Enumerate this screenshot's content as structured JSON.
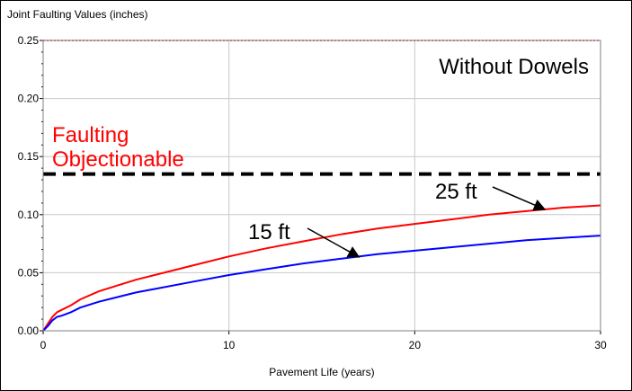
{
  "chart_data": {
    "type": "line",
    "title": "Joint Faulting Values (inches)",
    "xlabel": "Pavement Life (years)",
    "ylabel": "",
    "xlim": [
      0,
      30
    ],
    "ylim": [
      0,
      0.25
    ],
    "xticks": [
      "0",
      "10",
      "20",
      "30"
    ],
    "yticks": [
      "0.00",
      "0.05",
      "0.10",
      "0.15",
      "0.20",
      "0.25"
    ],
    "grid": true,
    "series": [
      {
        "name": "25 ft",
        "color": "#ff0000",
        "x": [
          0,
          0.25,
          0.5,
          0.75,
          1,
          1.5,
          2,
          3,
          4,
          5,
          6,
          8,
          10,
          12,
          14,
          16,
          18,
          20,
          22,
          24,
          26,
          28,
          30
        ],
        "y": [
          0,
          0.006,
          0.012,
          0.016,
          0.018,
          0.022,
          0.027,
          0.034,
          0.039,
          0.044,
          0.048,
          0.056,
          0.064,
          0.071,
          0.077,
          0.083,
          0.088,
          0.092,
          0.096,
          0.1,
          0.103,
          0.106,
          0.108
        ]
      },
      {
        "name": "15 ft",
        "color": "#0000ff",
        "x": [
          0,
          0.25,
          0.5,
          0.75,
          1,
          1.5,
          2,
          3,
          4,
          5,
          6,
          8,
          10,
          12,
          14,
          16,
          18,
          20,
          22,
          24,
          26,
          28,
          30
        ],
        "y": [
          0,
          0.004,
          0.009,
          0.012,
          0.013,
          0.016,
          0.02,
          0.025,
          0.029,
          0.033,
          0.036,
          0.042,
          0.048,
          0.053,
          0.058,
          0.062,
          0.066,
          0.069,
          0.072,
          0.075,
          0.078,
          0.08,
          0.082
        ]
      }
    ],
    "reference_lines": [
      {
        "label": "Faulting Objectionable",
        "y": 0.135,
        "color": "#000000",
        "style": "dashed",
        "label_color": "#ff0000"
      },
      {
        "label": "",
        "y": 0.25,
        "color": "#ff0000",
        "style": "dotted"
      }
    ],
    "annotations": [
      {
        "text": "Without Dowels"
      },
      {
        "text": "25 ft",
        "arrow_to": [
          27,
          0.1045
        ]
      },
      {
        "text": "15 ft",
        "arrow_to": [
          17,
          0.0635
        ]
      }
    ]
  }
}
